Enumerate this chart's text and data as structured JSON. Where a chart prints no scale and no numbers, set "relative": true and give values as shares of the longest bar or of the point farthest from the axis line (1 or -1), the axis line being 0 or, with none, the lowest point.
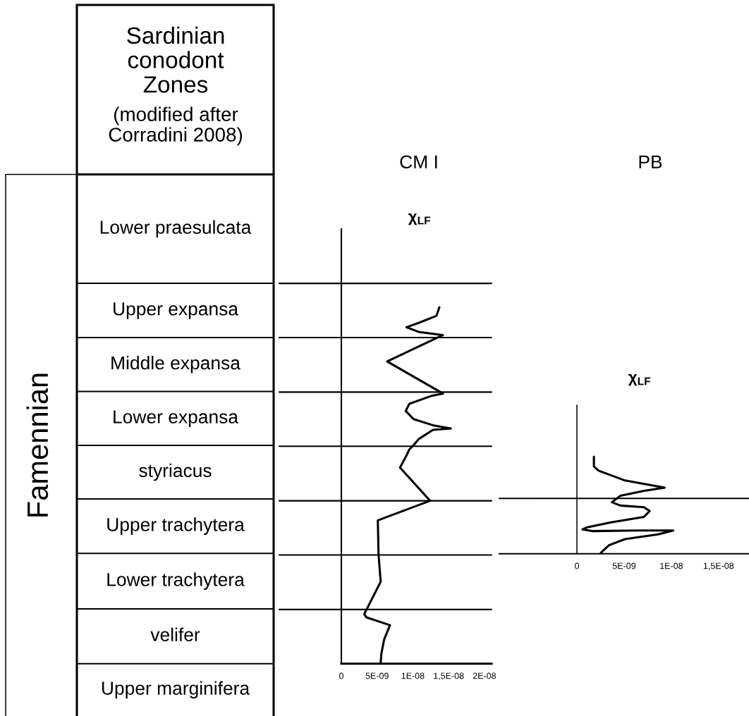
{
  "chart_data": [
    {
      "type": "other",
      "title": "Sardinian conodont Zones",
      "subtitle": "(modified after Corradini 2008)",
      "ylabel": "Famennian",
      "categories": [
        "Lower praesulcata",
        "Upper expansa",
        "Middle expansa",
        "Lower expansa",
        "styriacus",
        "Upper trachytera",
        "Lower trachytera",
        "velifer",
        "Upper marginifera"
      ]
    },
    {
      "type": "line",
      "title": "CM I",
      "xlabel": "χ$_{LF}$",
      "relative": true,
      "series": [
        {
          "color": "#000000",
          "x": [
            1.37e-08,
            1.33e-08,
            1.08e-08,
            9.1e-09,
            1.08e-08,
            1.42e-08,
            6.4e-09,
            1.42e-08,
            1.27e-08,
            9.5e-09,
            9e-09,
            1.01e-08,
            1.28e-08,
            1.53e-08,
            1.28e-08,
            1.08e-08,
            1.01e-08,
            9.5e-09,
            9.1e-09,
            8.2e-09,
            1.24e-08,
            5.1e-09,
            5.2e-09,
            5.5e-09,
            3.2e-09,
            3.5e-09,
            6.8e-09,
            6e-09,
            5.6e-09,
            5.5e-09
          ],
          "values": [
            1.0,
            0.976,
            0.956,
            0.944,
            0.931,
            0.922,
            0.848,
            0.758,
            0.752,
            0.729,
            0.709,
            0.686,
            0.669,
            0.66,
            0.656,
            0.63,
            0.613,
            0.601,
            0.584,
            0.55,
            0.457,
            0.402,
            0.306,
            0.23,
            0.139,
            0.13,
            0.108,
            0.069,
            0.029,
            0.003
          ]
        }
      ],
      "xlim": [
        0,
        2.1e-08
      ],
      "xticks": [
        0,
        {
          "value": 5e-09,
          "label": "5E-09"
        },
        {
          "value": 1e-08,
          "label": "1E-08"
        },
        {
          "value": 1.5e-08,
          "label": "1,5E-08"
        },
        {
          "value": 2e-08,
          "label": "2E-08"
        }
      ],
      "ref_lines": [
        {
          "axis": "y",
          "value": 0.152
        },
        {
          "axis": "y",
          "value": 0.305
        },
        {
          "axis": "y",
          "value": 0.457
        },
        {
          "axis": "y",
          "value": 0.61
        },
        {
          "axis": "y",
          "value": 0.762
        },
        {
          "axis": "y",
          "value": 0.915
        },
        {
          "axis": "y",
          "value": 1.067
        }
      ]
    },
    {
      "type": "line",
      "title": "PB",
      "xlabel": "χ$_{LF}$",
      "relative": true,
      "series": [
        {
          "color": "#000000",
          "x": [
            1.8e-09,
            1.8e-09,
            2.3e-09,
            5.1e-09,
            9.3e-09,
            7.1e-09,
            4.6e-09,
            3.7e-09,
            4.6e-09,
            7.1e-09,
            7.7e-09,
            7.1e-09,
            3.6e-09,
            1.1e-09,
            6e-10,
            1.6e-09,
            6.6e-09,
            1.02e-08,
            8.6e-09,
            5.1e-09,
            3.4e-09,
            2.6e-09,
            2.5e-09
          ],
          "values": [
            1.0,
            0.899,
            0.855,
            0.754,
            0.681,
            0.648,
            0.597,
            0.53,
            0.496,
            0.479,
            0.44,
            0.379,
            0.323,
            0.272,
            0.25,
            0.233,
            0.239,
            0.239,
            0.2,
            0.15,
            0.088,
            0.015,
            0.0
          ]
        }
      ],
      "xlim": [
        0,
        1.8e-08
      ],
      "xticks": [
        0,
        {
          "value": 5e-09,
          "label": "5E-09"
        },
        {
          "value": 1e-08,
          "label": "1E-08"
        },
        {
          "value": 1.5e-08,
          "label": "1,5E-08"
        }
      ],
      "ref_lines": [
        {
          "axis": "y",
          "value": 0.569
        }
      ]
    }
  ]
}
